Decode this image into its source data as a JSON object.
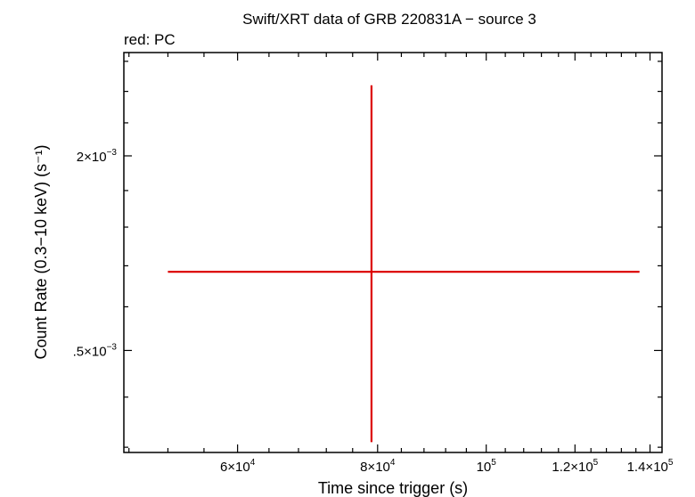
{
  "chart_data": {
    "type": "scatter",
    "title": "Swift/XRT data of GRB 220831A − source 3",
    "subtitle": "red: PC",
    "xlabel": "Time since trigger (s)",
    "ylabel": "Count Rate (0.3−10 keV) (s⁻¹)",
    "xscale": "log",
    "yscale": "log",
    "xlim": [
      47500,
      143500
    ],
    "ylim": [
      0.00129,
      0.00233
    ],
    "x_ticks": [
      {
        "value": 60000,
        "mantissa": "6×10",
        "exp": "4"
      },
      {
        "value": 80000,
        "mantissa": "8×10",
        "exp": "4"
      },
      {
        "value": 100000,
        "mantissa": "10",
        "exp": "5"
      },
      {
        "value": 120000,
        "mantissa": "1.2×10",
        "exp": "5"
      },
      {
        "value": 140000,
        "mantissa": "1.4×10",
        "exp": "5"
      }
    ],
    "y_ticks": [
      {
        "value": 0.002,
        "mantissa": "2×10",
        "exp": "−3"
      },
      {
        "value": 0.0015,
        "mantissa": ".5×10",
        "exp": "−3"
      }
    ],
    "series": [
      {
        "name": "PC",
        "color": "#dd0000",
        "points": [
          {
            "x": 79000,
            "y": 0.001685,
            "xerr_low": 27000,
            "xerr_high": 58000,
            "yerr_low": 0.000375,
            "yerr_high": 0.000535
          }
        ]
      }
    ],
    "grid": false
  }
}
